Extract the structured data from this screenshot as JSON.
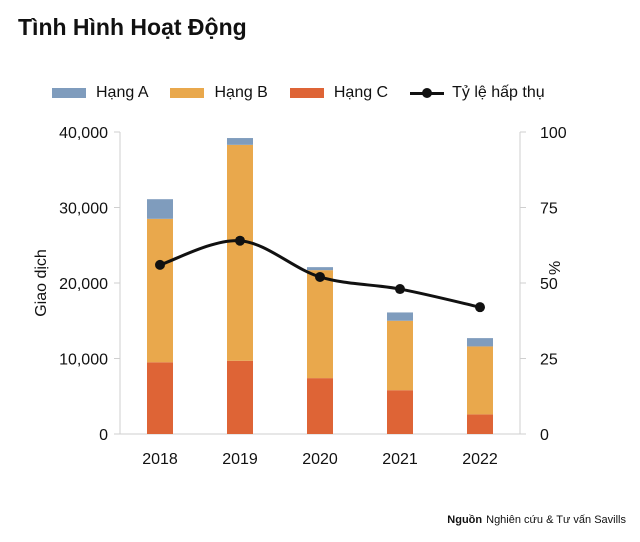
{
  "title": "Tình Hình Hoạt Động",
  "source": {
    "label": "Nguồn",
    "text": "Nghiên cứu & Tư vấn Savills"
  },
  "colors": {
    "hang_a": "#7f9cbd",
    "hang_b": "#e9a84c",
    "hang_c": "#de6436",
    "line": "#111111"
  },
  "chart_data": {
    "type": "bar",
    "stacked": true,
    "categories": [
      "2018",
      "2019",
      "2020",
      "2021",
      "2022"
    ],
    "series": [
      {
        "name": "Hạng C",
        "values": [
          9500,
          9700,
          7400,
          5800,
          2600
        ]
      },
      {
        "name": "Hạng B",
        "values": [
          19000,
          28600,
          14300,
          9200,
          9000
        ]
      },
      {
        "name": "Hạng A",
        "values": [
          2600,
          900,
          400,
          1100,
          1100
        ]
      }
    ],
    "line_series": {
      "name": "Tỷ lệ hấp thụ",
      "axis": "right",
      "values": [
        56,
        64,
        52,
        48,
        42
      ]
    },
    "ylabel": "Giao dịch",
    "y2label": "%",
    "ylim": [
      0,
      40000
    ],
    "y2lim": [
      0,
      100
    ],
    "yticks": [
      "0",
      "10,000",
      "20,000",
      "30,000",
      "40,000"
    ],
    "y2ticks": [
      "0",
      "25",
      "50",
      "75",
      "100"
    ],
    "grid": false,
    "legend_position": "top"
  }
}
